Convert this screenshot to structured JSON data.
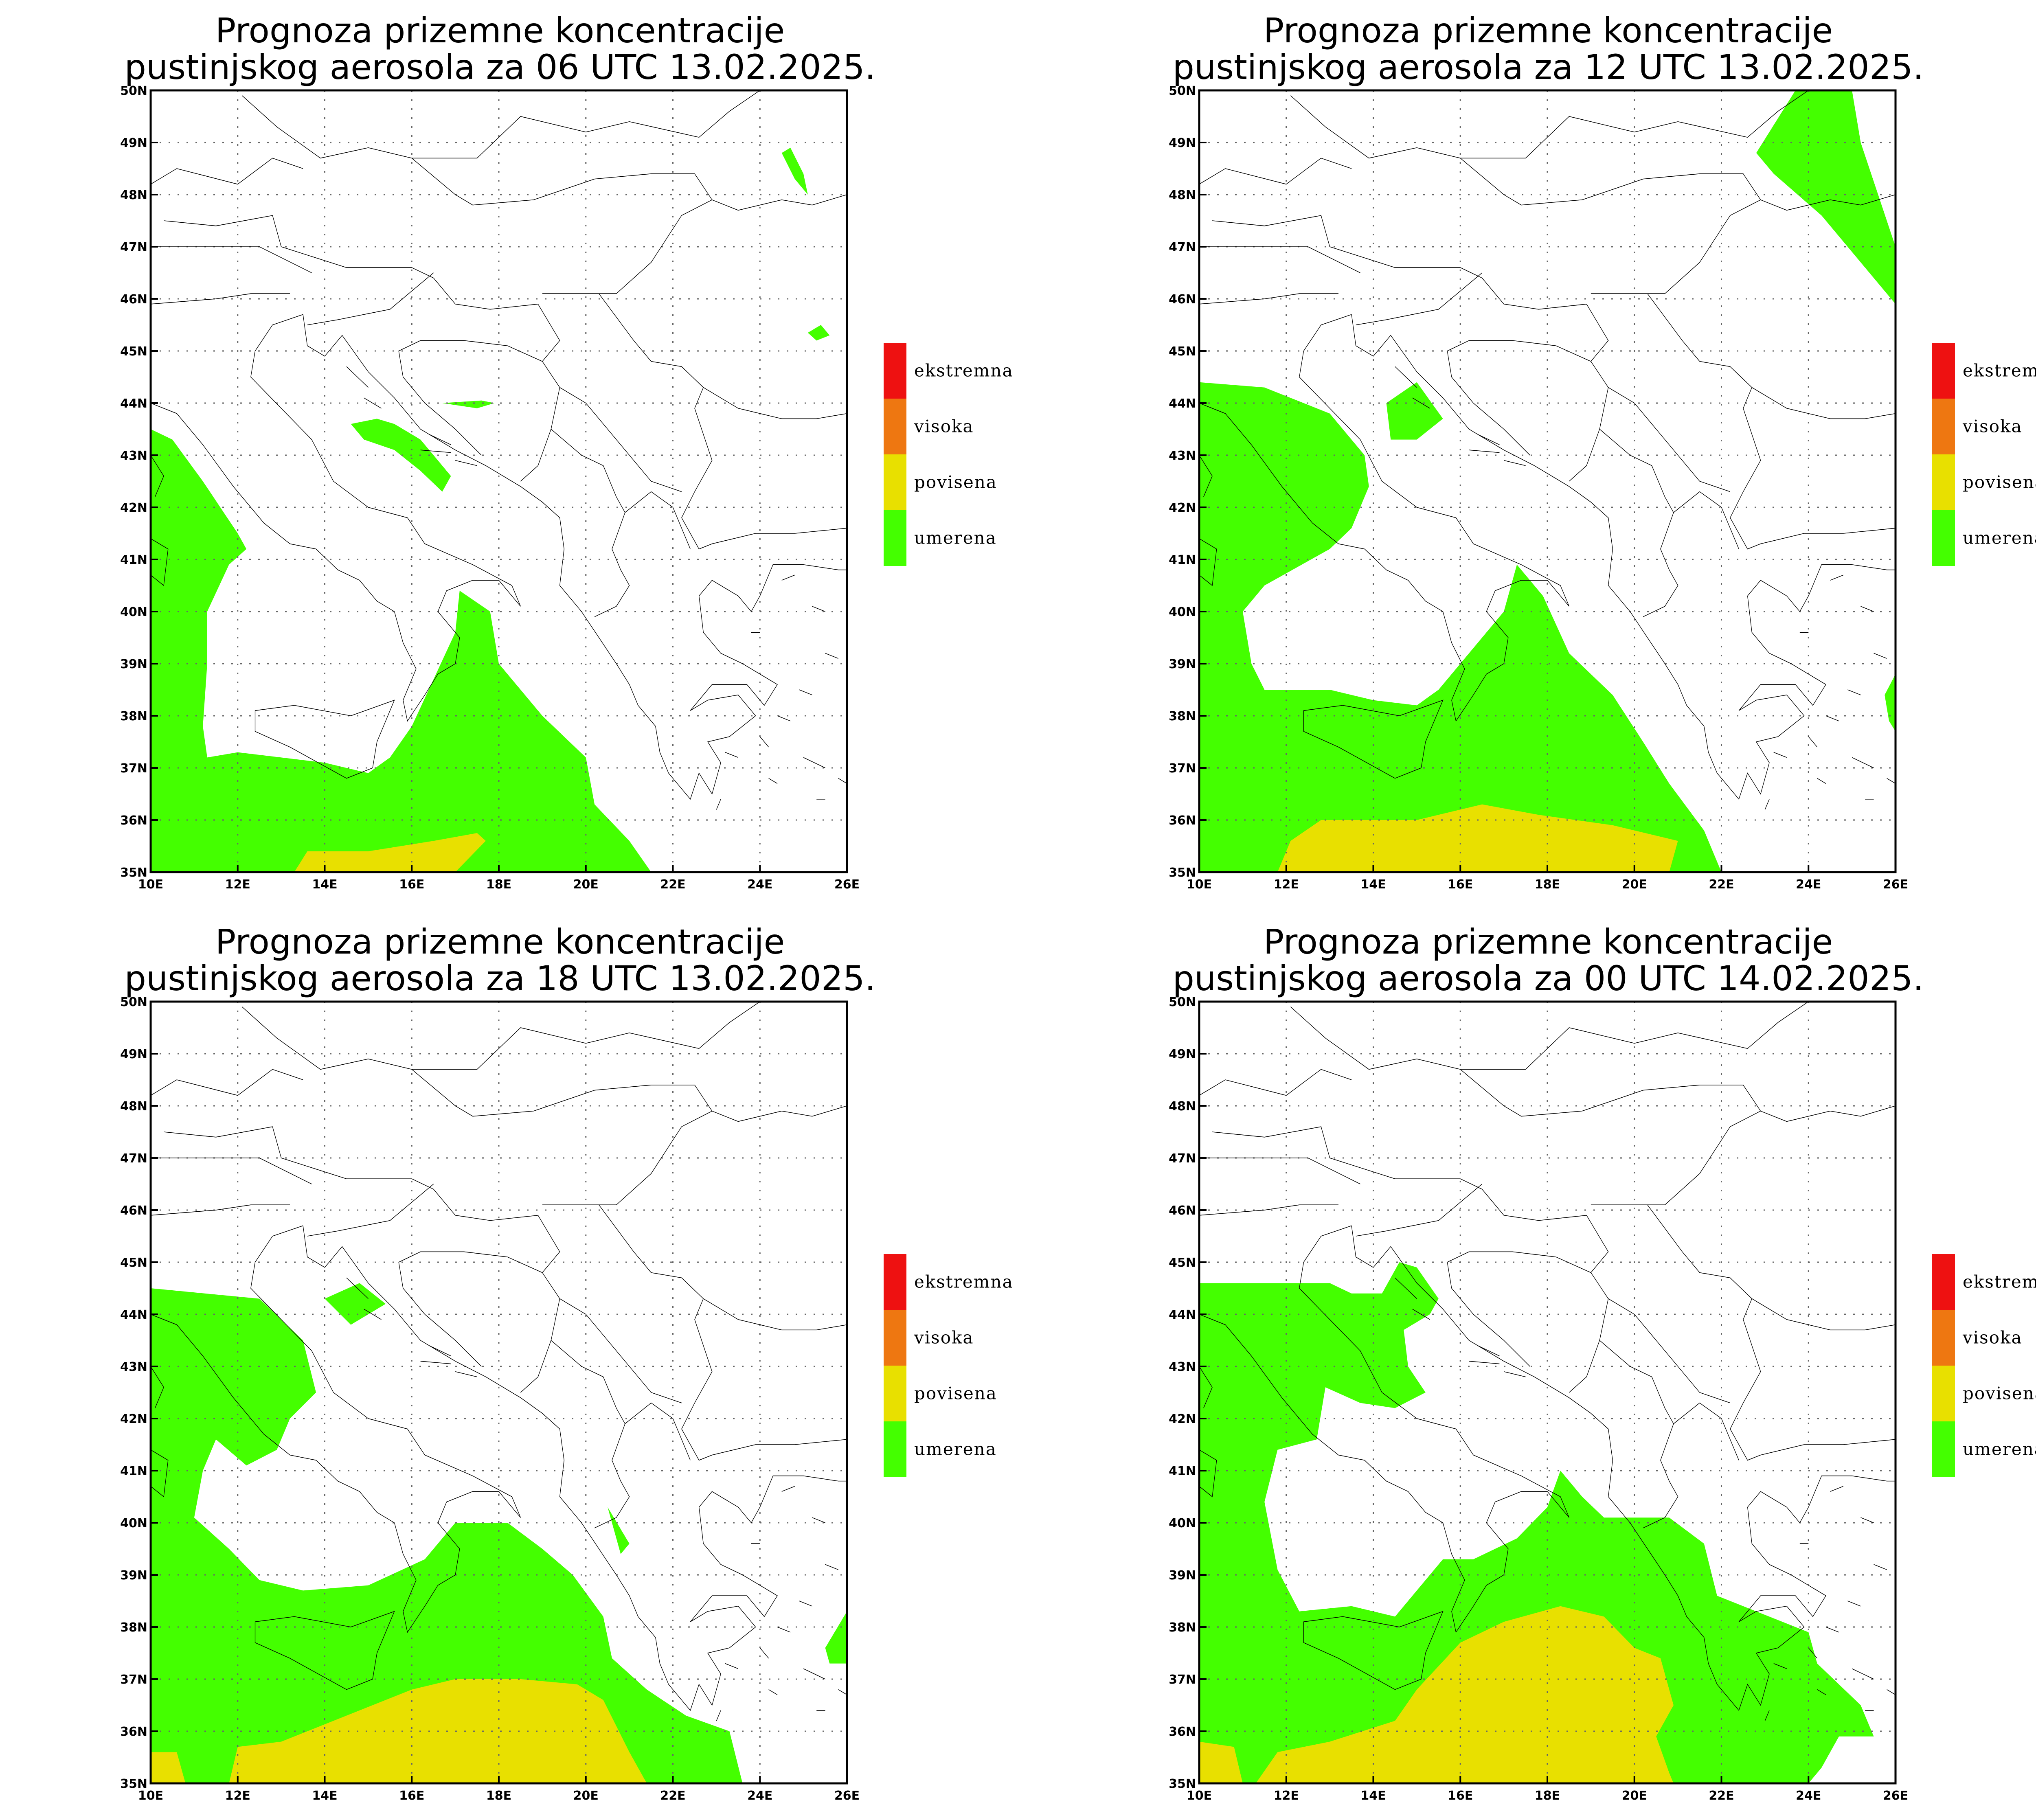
{
  "colors": {
    "ekstremna": "#ee1111",
    "visoka": "#ee7711",
    "povisena": "#e8e000",
    "umerena": "#44ff00",
    "border": "#000000",
    "grid": "#666666"
  },
  "legend": [
    {
      "key": "ekstremna",
      "label": "ekstremna"
    },
    {
      "key": "visoka",
      "label": "visoka"
    },
    {
      "key": "povisena",
      "label": "povisena"
    },
    {
      "key": "umerena",
      "label": "umerena"
    }
  ],
  "axes": {
    "lon_labels": [
      "10E",
      "12E",
      "14E",
      "16E",
      "18E",
      "20E",
      "22E",
      "24E",
      "26E"
    ],
    "lat_labels": [
      "35N",
      "36N",
      "37N",
      "38N",
      "39N",
      "40N",
      "41N",
      "42N",
      "43N",
      "44N",
      "45N",
      "46N",
      "47N",
      "48N",
      "49N",
      "50N"
    ],
    "lon_range": [
      10,
      26
    ],
    "lat_range": [
      35,
      50
    ]
  },
  "panels": [
    {
      "id": "p1",
      "title_line1": "Prognoza prizemne koncentracije",
      "title_line2": "pustinjskog aerosola za 06 UTC 13.02.2025.",
      "regions": [
        {
          "level": "umerena",
          "coords": [
            [
              10,
              43.5
            ],
            [
              10.5,
              43.3
            ],
            [
              11.2,
              42.5
            ],
            [
              12,
              41.5
            ],
            [
              12.2,
              41.2
            ],
            [
              11.8,
              40.9
            ],
            [
              11.3,
              40
            ],
            [
              11.3,
              39
            ],
            [
              11.2,
              37.8
            ],
            [
              11.3,
              37.2
            ],
            [
              12,
              37.3
            ],
            [
              13,
              37.2
            ],
            [
              14,
              37.1
            ],
            [
              15,
              36.9
            ],
            [
              15.5,
              37.2
            ],
            [
              16,
              37.8
            ],
            [
              16.5,
              38.7
            ],
            [
              17,
              39.6
            ],
            [
              17.1,
              40.4
            ],
            [
              17.8,
              40
            ],
            [
              18,
              39
            ],
            [
              19,
              38
            ],
            [
              20,
              37.2
            ],
            [
              20.2,
              36.3
            ],
            [
              21,
              35.6
            ],
            [
              21.5,
              35
            ],
            [
              10,
              35
            ]
          ]
        },
        {
          "level": "povisena",
          "coords": [
            [
              13.3,
              35
            ],
            [
              13.6,
              35.4
            ],
            [
              15,
              35.4
            ],
            [
              16.5,
              35.6
            ],
            [
              17.5,
              35.75
            ],
            [
              17.7,
              35.6
            ],
            [
              17,
              35
            ],
            [
              13.3,
              35
            ]
          ]
        },
        {
          "level": "umerena",
          "coords": [
            [
              14.6,
              43.6
            ],
            [
              15.2,
              43.7
            ],
            [
              15.6,
              43.6
            ],
            [
              16.2,
              43.3
            ],
            [
              16.6,
              42.9
            ],
            [
              16.9,
              42.6
            ],
            [
              16.7,
              42.3
            ],
            [
              16.2,
              42.7
            ],
            [
              15.6,
              43.1
            ],
            [
              14.9,
              43.3
            ],
            [
              14.6,
              43.6
            ]
          ]
        },
        {
          "level": "umerena",
          "coords": [
            [
              16.7,
              44
            ],
            [
              17.6,
              44.05
            ],
            [
              17.9,
              44
            ],
            [
              17.5,
              43.9
            ],
            [
              16.7,
              44
            ]
          ]
        },
        {
          "level": "umerena",
          "coords": [
            [
              24.5,
              48.8
            ],
            [
              24.7,
              48.9
            ],
            [
              25,
              48.4
            ],
            [
              25.1,
              48
            ],
            [
              24.8,
              48.3
            ],
            [
              24.5,
              48.8
            ]
          ]
        },
        {
          "level": "umerena",
          "coords": [
            [
              25.1,
              45.35
            ],
            [
              25.4,
              45.5
            ],
            [
              25.6,
              45.3
            ],
            [
              25.3,
              45.2
            ],
            [
              25.1,
              45.35
            ]
          ]
        }
      ]
    },
    {
      "id": "p2",
      "title_line1": "Prognoza prizemne koncentracije",
      "title_line2": "pustinjskog aerosola za 12 UTC 13.02.2025.",
      "regions": [
        {
          "level": "umerena",
          "coords": [
            [
              10,
              44.4
            ],
            [
              11.5,
              44.3
            ],
            [
              13,
              43.8
            ],
            [
              13.8,
              43
            ],
            [
              13.9,
              42.4
            ],
            [
              13.5,
              41.6
            ],
            [
              13,
              41.2
            ],
            [
              11.5,
              40.5
            ],
            [
              11,
              40
            ],
            [
              11.2,
              39
            ],
            [
              11.5,
              38.5
            ],
            [
              12,
              38.5
            ],
            [
              13,
              38.5
            ],
            [
              14,
              38.3
            ],
            [
              15,
              38.2
            ],
            [
              15.5,
              38.5
            ],
            [
              16.3,
              39.3
            ],
            [
              17,
              40
            ],
            [
              17.3,
              40.9
            ],
            [
              17.9,
              40.3
            ],
            [
              18.5,
              39.2
            ],
            [
              19.5,
              38.4
            ],
            [
              20.2,
              37.5
            ],
            [
              20.8,
              36.7
            ],
            [
              21.6,
              35.8
            ],
            [
              22,
              35
            ],
            [
              10,
              35
            ]
          ]
        },
        {
          "level": "povisena",
          "coords": [
            [
              11.8,
              35
            ],
            [
              12.1,
              35.6
            ],
            [
              12.8,
              36
            ],
            [
              14,
              36
            ],
            [
              15,
              36
            ],
            [
              16.5,
              36.3
            ],
            [
              17.8,
              36.1
            ],
            [
              19.5,
              35.9
            ],
            [
              20.5,
              35.7
            ],
            [
              21,
              35.6
            ],
            [
              20.8,
              35
            ],
            [
              11.8,
              35
            ]
          ]
        },
        {
          "level": "umerena",
          "coords": [
            [
              14.3,
              44
            ],
            [
              15,
              44.4
            ],
            [
              15.6,
              43.7
            ],
            [
              15,
              43.3
            ],
            [
              14.4,
              43.3
            ],
            [
              14.3,
              44
            ]
          ]
        },
        {
          "level": "umerena",
          "coords": [
            [
              23.7,
              50
            ],
            [
              25,
              50
            ],
            [
              25.2,
              49
            ],
            [
              25.6,
              48
            ],
            [
              26,
              47
            ],
            [
              26,
              45.9
            ],
            [
              25.4,
              46.5
            ],
            [
              24.3,
              47.6
            ],
            [
              23.2,
              48.4
            ],
            [
              22.8,
              48.8
            ],
            [
              23.7,
              50
            ]
          ]
        },
        {
          "level": "umerena",
          "coords": [
            [
              26,
              38.8
            ],
            [
              25.75,
              38.4
            ],
            [
              25.85,
              37.9
            ],
            [
              26,
              37.7
            ],
            [
              26,
              38.8
            ]
          ]
        }
      ]
    },
    {
      "id": "p3",
      "title_line1": "Prognoza prizemne koncentracije",
      "title_line2": "pustinjskog aerosola za 18 UTC 13.02.2025.",
      "regions": [
        {
          "level": "umerena",
          "coords": [
            [
              10,
              44.5
            ],
            [
              12.5,
              44.3
            ],
            [
              13.5,
              43.5
            ],
            [
              13.8,
              42.5
            ],
            [
              13.2,
              42
            ],
            [
              12.9,
              41.4
            ],
            [
              12.2,
              41.1
            ],
            [
              11.5,
              41.6
            ],
            [
              11.2,
              41
            ],
            [
              11,
              40.1
            ],
            [
              11.8,
              39.5
            ],
            [
              12.5,
              38.9
            ],
            [
              13.5,
              38.7
            ],
            [
              15,
              38.8
            ],
            [
              16.3,
              39.3
            ],
            [
              17,
              40
            ],
            [
              17.6,
              40
            ],
            [
              18.2,
              40
            ],
            [
              19,
              39.5
            ],
            [
              19.7,
              39
            ],
            [
              20.4,
              38.2
            ],
            [
              20.6,
              37.4
            ],
            [
              21.4,
              36.8
            ],
            [
              22.3,
              36.3
            ],
            [
              23.3,
              36
            ],
            [
              23.6,
              35
            ],
            [
              10,
              35
            ]
          ]
        },
        {
          "level": "povisena",
          "coords": [
            [
              11.8,
              35
            ],
            [
              12,
              35.7
            ],
            [
              13,
              35.8
            ],
            [
              14.5,
              36.3
            ],
            [
              16,
              36.8
            ],
            [
              17,
              37
            ],
            [
              18.5,
              37
            ],
            [
              19.8,
              36.9
            ],
            [
              20.4,
              36.6
            ],
            [
              21,
              35.6
            ],
            [
              21.4,
              35
            ],
            [
              11.8,
              35
            ]
          ]
        },
        {
          "level": "povisena",
          "coords": [
            [
              10,
              35.6
            ],
            [
              10.6,
              35.6
            ],
            [
              10.8,
              35
            ],
            [
              10,
              35
            ]
          ]
        },
        {
          "level": "umerena",
          "coords": [
            [
              14,
              44.3
            ],
            [
              14.8,
              44.6
            ],
            [
              15.4,
              44.2
            ],
            [
              14.6,
              43.8
            ],
            [
              14,
              44.3
            ]
          ]
        },
        {
          "level": "umerena",
          "coords": [
            [
              20.5,
              40.3
            ],
            [
              21,
              39.6
            ],
            [
              20.8,
              39.4
            ],
            [
              20.5,
              40.3
            ]
          ]
        },
        {
          "level": "umerena",
          "coords": [
            [
              26,
              38.3
            ],
            [
              25.5,
              37.6
            ],
            [
              25.6,
              37.3
            ],
            [
              26,
              37.3
            ],
            [
              26,
              38.3
            ]
          ]
        }
      ]
    },
    {
      "id": "p4",
      "title_line1": "Prognoza prizemne koncentracije",
      "title_line2": "pustinjskog aerosola za 00 UTC 14.02.2025.",
      "regions": [
        {
          "level": "umerena",
          "coords": [
            [
              10,
              44.6
            ],
            [
              13,
              44.6
            ],
            [
              13.5,
              44.4
            ],
            [
              14.2,
              44.4
            ],
            [
              14.6,
              45
            ],
            [
              15,
              44.9
            ],
            [
              15.5,
              44.3
            ],
            [
              15.3,
              44
            ],
            [
              14.7,
              43.7
            ],
            [
              14.8,
              43
            ],
            [
              15.2,
              42.5
            ],
            [
              14.5,
              42.2
            ],
            [
              13.7,
              42.3
            ],
            [
              12.9,
              42.6
            ],
            [
              12.7,
              41.6
            ],
            [
              11.8,
              41.4
            ],
            [
              11.5,
              40.4
            ],
            [
              11.8,
              39.1
            ],
            [
              12.3,
              38.3
            ],
            [
              13.5,
              38.4
            ],
            [
              14.5,
              38.2
            ],
            [
              15.6,
              39.3
            ],
            [
              16.3,
              39.3
            ],
            [
              17.3,
              39.7
            ],
            [
              18,
              40.3
            ],
            [
              18.3,
              41
            ],
            [
              18.8,
              40.5
            ],
            [
              19.3,
              40.1
            ],
            [
              20.2,
              40.1
            ],
            [
              20.8,
              40.1
            ],
            [
              21.6,
              39.6
            ],
            [
              21.9,
              38.6
            ],
            [
              22.8,
              38.3
            ],
            [
              24,
              37.9
            ],
            [
              24.2,
              37.3
            ],
            [
              25.2,
              36.5
            ],
            [
              25.5,
              35.9
            ],
            [
              24.7,
              35.9
            ],
            [
              24.3,
              35.3
            ],
            [
              24,
              35
            ],
            [
              10,
              35
            ]
          ]
        },
        {
          "level": "povisena",
          "coords": [
            [
              11.3,
              35
            ],
            [
              11.8,
              35.6
            ],
            [
              13,
              35.8
            ],
            [
              14.5,
              36.2
            ],
            [
              15,
              36.8
            ],
            [
              16,
              37.7
            ],
            [
              17,
              38.1
            ],
            [
              18.3,
              38.4
            ],
            [
              19.3,
              38.2
            ],
            [
              20,
              37.6
            ],
            [
              20.6,
              37.4
            ],
            [
              20.9,
              36.5
            ],
            [
              20.5,
              35.9
            ],
            [
              20.8,
              35.2
            ],
            [
              20.9,
              35
            ],
            [
              11.3,
              35
            ]
          ]
        },
        {
          "level": "povisena",
          "coords": [
            [
              10,
              35.8
            ],
            [
              10.8,
              35.7
            ],
            [
              11,
              35
            ],
            [
              10,
              35
            ]
          ]
        }
      ]
    }
  ]
}
